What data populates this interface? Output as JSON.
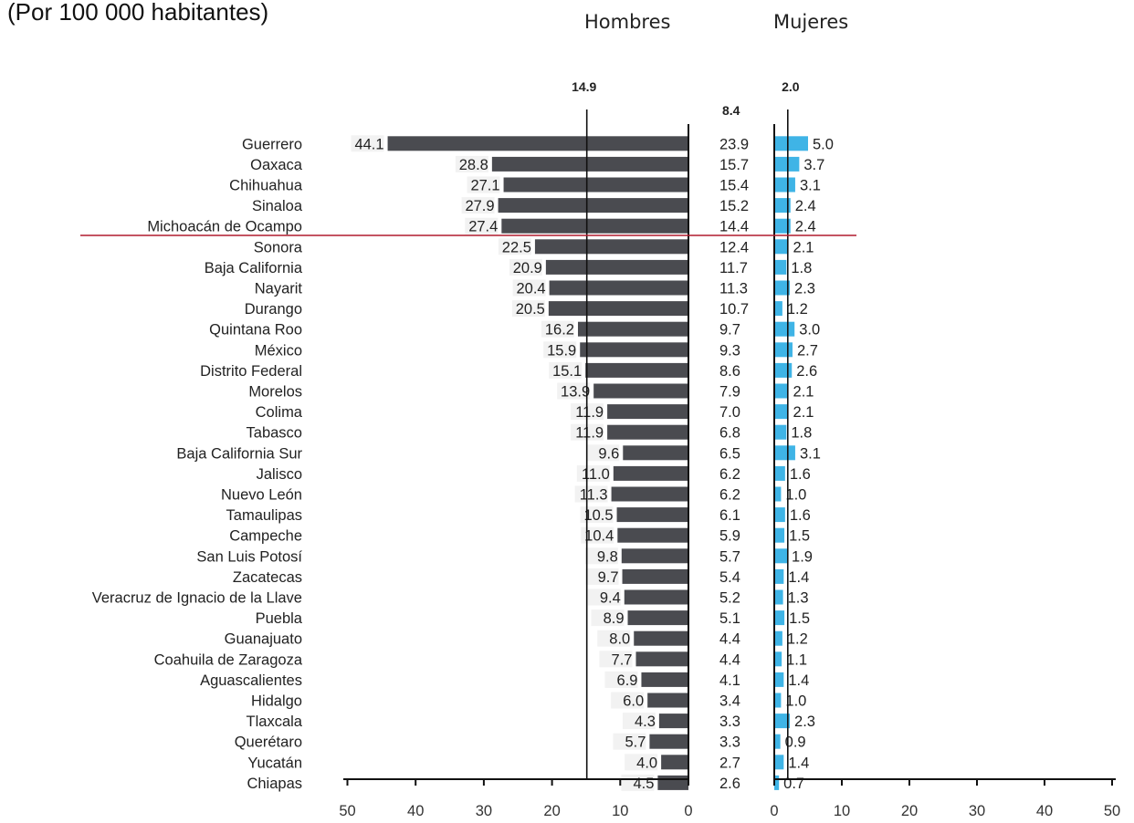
{
  "subtitle": "(Por 100 000 habitantes)",
  "headers": {
    "men": "Hombres",
    "women": "Mujeres"
  },
  "colors": {
    "men_bar": "#4a4b50",
    "women_bar": "#3fb4e6",
    "highlight_line": "#b01c2e",
    "axis": "#111111"
  },
  "chart_data": {
    "type": "bar",
    "orientation": "horizontal",
    "categories": [
      "Guerrero",
      "Oaxaca",
      "Chihuahua",
      "Sinaloa",
      "Michoacán de Ocampo",
      "Sonora",
      "Baja California",
      "Nayarit",
      "Durango",
      "Quintana Roo",
      "México",
      "Distrito Federal",
      "Morelos",
      "Colima",
      "Tabasco",
      "Baja California Sur",
      "Jalisco",
      "Nuevo León",
      "Tamaulipas",
      "Campeche",
      "San Luis Potosí",
      "Zacatecas",
      "Veracruz de Ignacio de la Llave",
      "Puebla",
      "Guanajuato",
      "Coahuila de Zaragoza",
      "Aguascalientes",
      "Hidalgo",
      "Tlaxcala",
      "Querétaro",
      "Yucatán",
      "Chiapas"
    ],
    "series": [
      {
        "name": "Hombres",
        "values": [
          44.1,
          28.8,
          27.1,
          27.9,
          27.4,
          22.5,
          20.9,
          20.4,
          20.5,
          16.2,
          15.9,
          15.1,
          13.9,
          11.9,
          11.9,
          9.6,
          11.0,
          11.3,
          10.5,
          10.4,
          9.8,
          9.7,
          9.4,
          8.9,
          8.0,
          7.7,
          6.9,
          6.0,
          4.3,
          5.7,
          4.0,
          4.5
        ]
      },
      {
        "values": [
          23.9,
          15.7,
          15.4,
          15.2,
          14.4,
          12.4,
          11.7,
          11.3,
          10.7,
          9.7,
          9.3,
          8.6,
          7.9,
          7.0,
          6.8,
          6.5,
          6.2,
          6.2,
          6.1,
          5.9,
          5.7,
          5.4,
          5.2,
          5.1,
          4.4,
          4.4,
          4.1,
          3.4,
          3.3,
          3.3,
          2.7,
          2.6
        ]
      },
      {
        "name": "Mujeres",
        "values": [
          5.0,
          3.7,
          3.1,
          2.4,
          2.4,
          2.1,
          1.8,
          2.3,
          1.2,
          3.0,
          2.7,
          2.6,
          2.1,
          2.1,
          1.8,
          3.1,
          1.6,
          1.0,
          1.6,
          1.5,
          1.9,
          1.4,
          1.3,
          1.5,
          1.2,
          1.1,
          1.4,
          1.0,
          2.3,
          0.9,
          1.4,
          0.7
        ]
      }
    ],
    "men_values_display": [
      "44.1",
      "28.8",
      "27.1",
      "27.9",
      "27.4",
      "22.5",
      "20.9",
      "20.4",
      "20.5",
      "16.2",
      "15.9",
      "15.1",
      "13.9",
      "11.9",
      "11.9",
      "9.6",
      "11.0",
      "11.3",
      "10.5",
      "10.4",
      "9.8",
      "9.7",
      "9.4",
      "8.9",
      "8.0",
      "7.7",
      "6.9",
      "6.0",
      "4.3",
      "5.7",
      "4.0",
      "4.5"
    ],
    "total_values_display": [
      "23.9",
      "15.7",
      "15.4",
      "15.2",
      "14.4",
      "12.4",
      "11.7",
      "11.3",
      "10.7",
      "9.7",
      "9.3",
      "8.6",
      "7.9",
      "7.0",
      "6.8",
      "6.5",
      "6.2",
      "6.2",
      "6.1",
      "5.9",
      "5.7",
      "5.4",
      "5.2",
      "5.1",
      "4.4",
      "4.4",
      "4.1",
      "3.4",
      "3.3",
      "3.3",
      "2.7",
      "2.6"
    ],
    "women_values_display": [
      "5.0",
      "3.7",
      "3.1",
      "2.4",
      "2.4",
      "2.1",
      "1.8",
      "2.3",
      "1.2",
      "3.0",
      "2.7",
      "2.6",
      "2.1",
      "2.1",
      "1.8",
      "3.1",
      "1.6",
      "1.0",
      "1.6",
      "1.5",
      "1.9",
      "1.4",
      "1.3",
      "1.5",
      "1.2",
      "1.1",
      "1.4",
      "1.0",
      "2.3",
      "0.9",
      "1.4",
      "0.7"
    ],
    "reference_lines": {
      "men": 14.9,
      "total": 8.4,
      "women": 2.0
    },
    "reference_labels": {
      "men": "14.9",
      "total": "8.4",
      "women": "2.0"
    },
    "men_axis": {
      "xlim": [
        50,
        0
      ],
      "ticks": [
        "50",
        "40",
        "30",
        "20",
        "10",
        "0"
      ]
    },
    "women_axis": {
      "xlim": [
        0,
        50
      ],
      "ticks": [
        "0",
        "10",
        "20",
        "30",
        "40",
        "50"
      ]
    },
    "highlight_after_index": 4
  }
}
